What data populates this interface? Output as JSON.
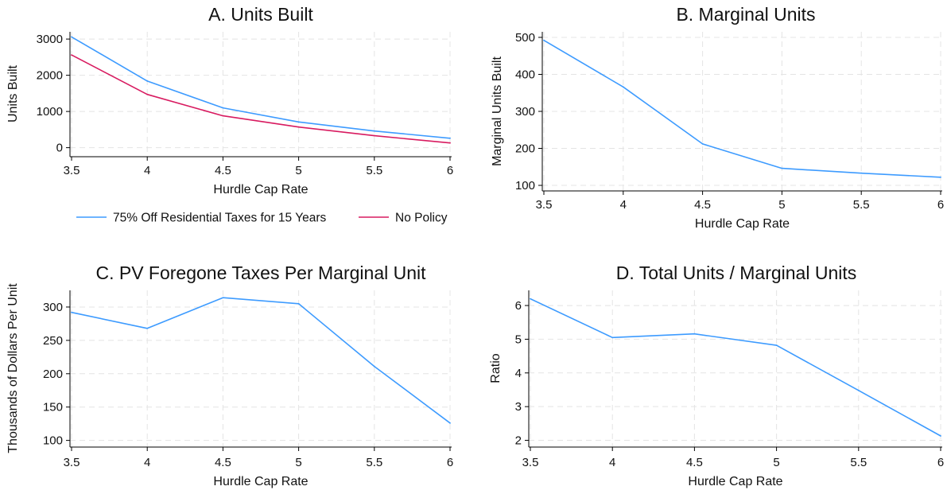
{
  "colors": {
    "blue": "#3d9bff",
    "red": "#d81b60",
    "grid": "#e4e4e4"
  },
  "chart_data": [
    {
      "type": "line",
      "title": "A. Units Built",
      "xlabel": "Hurdle Cap Rate",
      "ylabel": "Units Built",
      "x": [
        3.5,
        4,
        4.5,
        5,
        5.5,
        6
      ],
      "xticks": [
        "3.5",
        "4",
        "4.5",
        "5",
        "5.5",
        "6"
      ],
      "yticks": [
        0,
        1000,
        2000,
        3000
      ],
      "ylim": [
        -250,
        3200
      ],
      "grid": true,
      "legend_position": "bottom",
      "series": [
        {
          "name": "75% Off Residential Taxes for 15 Years",
          "color": "#3d9bff",
          "values": [
            3060,
            1840,
            1100,
            710,
            460,
            260
          ]
        },
        {
          "name": "No Policy",
          "color": "#d81b60",
          "values": [
            2560,
            1470,
            880,
            570,
            330,
            130
          ]
        }
      ]
    },
    {
      "type": "line",
      "title": "B. Marginal Units",
      "xlabel": "Hurdle Cap Rate",
      "ylabel": "Marginal Units Built",
      "x": [
        3.5,
        4,
        4.5,
        5,
        5.5,
        6
      ],
      "xticks": [
        "3.5",
        "4",
        "4.5",
        "5",
        "5.5",
        "6"
      ],
      "yticks": [
        100,
        200,
        300,
        400,
        500
      ],
      "ylim": [
        85,
        515
      ],
      "grid": true,
      "series": [
        {
          "color": "#3d9bff",
          "values": [
            492,
            366,
            212,
            146,
            133,
            122
          ]
        }
      ]
    },
    {
      "type": "line",
      "title": "C. PV Foregone Taxes Per Marginal Unit",
      "xlabel": "Hurdle Cap Rate",
      "ylabel": "Thousands of Dollars Per Unit",
      "x": [
        3.5,
        4,
        4.5,
        5,
        5.5,
        6
      ],
      "xticks": [
        "3.5",
        "4",
        "4.5",
        "5",
        "5.5",
        "6"
      ],
      "yticks": [
        100,
        150,
        200,
        250,
        300
      ],
      "ylim": [
        90,
        325
      ],
      "grid": true,
      "series": [
        {
          "color": "#3d9bff",
          "values": [
            292,
            268,
            314,
            305,
            211,
            126
          ]
        }
      ]
    },
    {
      "type": "line",
      "title": "D. Total Units / Marginal Units",
      "xlabel": "Hurdle Cap Rate",
      "ylabel": "Ratio",
      "x": [
        3.5,
        4,
        4.5,
        5,
        5.5,
        6
      ],
      "xticks": [
        "3.5",
        "4",
        "4.5",
        "5",
        "5.5",
        "6"
      ],
      "yticks": [
        2,
        3,
        4,
        5,
        6
      ],
      "ylim": [
        1.8,
        6.45
      ],
      "grid": true,
      "series": [
        {
          "color": "#3d9bff",
          "values": [
            6.2,
            5.05,
            5.16,
            4.82,
            3.48,
            2.13
          ]
        }
      ]
    }
  ]
}
